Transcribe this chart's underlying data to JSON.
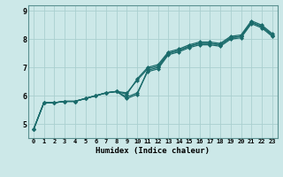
{
  "xlabel": "Humidex (Indice chaleur)",
  "background_color": "#cce8e8",
  "grid_color": "#aacfcf",
  "line_color": "#1a6b6b",
  "xlim": [
    -0.5,
    23.5
  ],
  "ylim": [
    4.5,
    9.2
  ],
  "xticks": [
    0,
    1,
    2,
    3,
    4,
    5,
    6,
    7,
    8,
    9,
    10,
    11,
    12,
    13,
    14,
    15,
    16,
    17,
    18,
    19,
    20,
    21,
    22,
    23
  ],
  "yticks": [
    5,
    6,
    7,
    8,
    9
  ],
  "series": [
    [
      4.8,
      5.75,
      5.75,
      5.8,
      5.8,
      5.9,
      6.0,
      6.1,
      6.15,
      5.9,
      6.05,
      6.9,
      7.0,
      7.5,
      7.6,
      7.75,
      7.85,
      7.85,
      7.8,
      8.05,
      8.1,
      8.6,
      8.45,
      8.15
    ],
    [
      4.8,
      5.75,
      5.75,
      5.8,
      5.8,
      5.9,
      6.0,
      6.1,
      6.15,
      6.1,
      6.55,
      6.95,
      7.05,
      7.5,
      7.6,
      7.75,
      7.85,
      7.85,
      7.8,
      8.05,
      8.1,
      8.6,
      8.45,
      8.15
    ],
    [
      4.8,
      5.75,
      5.75,
      5.8,
      5.8,
      5.9,
      6.0,
      6.1,
      6.15,
      6.05,
      6.6,
      7.0,
      7.1,
      7.55,
      7.65,
      7.8,
      7.9,
      7.9,
      7.85,
      8.1,
      8.15,
      8.65,
      8.5,
      8.2
    ],
    [
      4.8,
      5.75,
      5.75,
      5.8,
      5.8,
      5.9,
      6.0,
      6.1,
      6.15,
      5.95,
      6.1,
      6.85,
      6.95,
      7.45,
      7.55,
      7.7,
      7.8,
      7.8,
      7.75,
      8.0,
      8.05,
      8.55,
      8.4,
      8.1
    ]
  ],
  "marker": "D",
  "markersize": 2.0,
  "linewidth": 0.9,
  "tick_fontsize": 5.0,
  "xlabel_fontsize": 6.5
}
